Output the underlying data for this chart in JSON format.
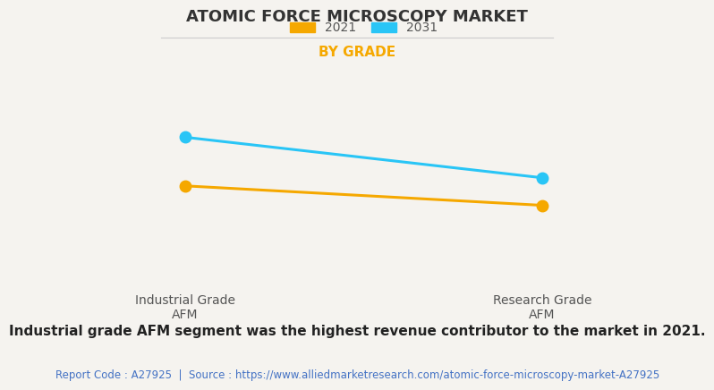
{
  "title": "ATOMIC FORCE MICROSCOPY MARKET",
  "subtitle": "BY GRADE",
  "categories": [
    "Industrial Grade\nAFM",
    "Research Grade\nAFM"
  ],
  "series": [
    {
      "label": "2021",
      "values": [
        0.62,
        0.5
      ],
      "color": "#F5A800",
      "marker": "o",
      "markersize": 9
    },
    {
      "label": "2031",
      "values": [
        0.92,
        0.67
      ],
      "color": "#29C5F6",
      "marker": "o",
      "markersize": 9
    }
  ],
  "ylim": [
    0.0,
    1.1
  ],
  "xlim": [
    -0.25,
    1.25
  ],
  "background_color": "#f5f3ef",
  "plot_bg_color": "#f5f3ef",
  "grid_color": "#d0cdc8",
  "title_fontsize": 13,
  "subtitle_fontsize": 11,
  "subtitle_color": "#F5A800",
  "legend_fontsize": 10,
  "tick_label_fontsize": 10,
  "footer_text": "Industrial grade AFM segment was the highest revenue contributor to the market in 2021.",
  "footer_fontsize": 11,
  "source_text": "Report Code : A27925  |  Source : https://www.alliedmarketresearch.com/atomic-force-microscopy-market-A27925",
  "source_color": "#4472C4",
  "source_fontsize": 8.5
}
